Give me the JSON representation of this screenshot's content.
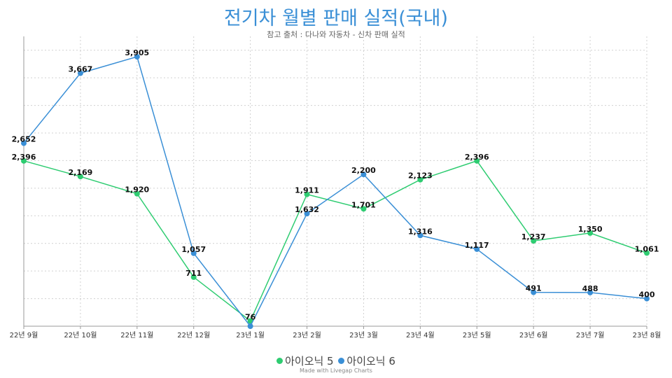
{
  "chart_data": {
    "type": "line",
    "title": "전기차 월별 판매 실적(국내)",
    "subtitle": "참고 출처 : 다나와 자동차 - 신차 판매 실적",
    "categories": [
      "22년 9월",
      "22년 10월",
      "22년 11월",
      "22년 12월",
      "23년 1월",
      "23년 2월",
      "23년 3월",
      "23년 4월",
      "23년 5월",
      "23년 6월",
      "23년 7월",
      "23년 8월"
    ],
    "series": [
      {
        "name": "아이오닉 5",
        "color": "#2ecc71",
        "values": [
          2396,
          2169,
          1920,
          711,
          76,
          1911,
          1701,
          2123,
          2396,
          1237,
          1350,
          1061
        ],
        "labels": [
          "2,396",
          "2,169",
          "1,920",
          "711",
          "76",
          "1,911",
          "1,701",
          "2,123",
          "2,396",
          "1,237",
          "1,350",
          "1,061"
        ]
      },
      {
        "name": "아이오닉 6",
        "color": "#3a8fd6",
        "values": [
          2652,
          3667,
          3905,
          1057,
          0,
          1632,
          2200,
          1316,
          1117,
          491,
          488,
          400
        ],
        "labels": [
          "2,652",
          "3,667",
          "3,905",
          "1,057",
          "",
          "1,632",
          "2,200",
          "1,316",
          "1,117",
          "491",
          "488",
          "400"
        ]
      }
    ],
    "ylim": [
      0,
      4200
    ],
    "grid": true,
    "legend_position": "bottom",
    "credit": "Made with Livegap Charts"
  }
}
